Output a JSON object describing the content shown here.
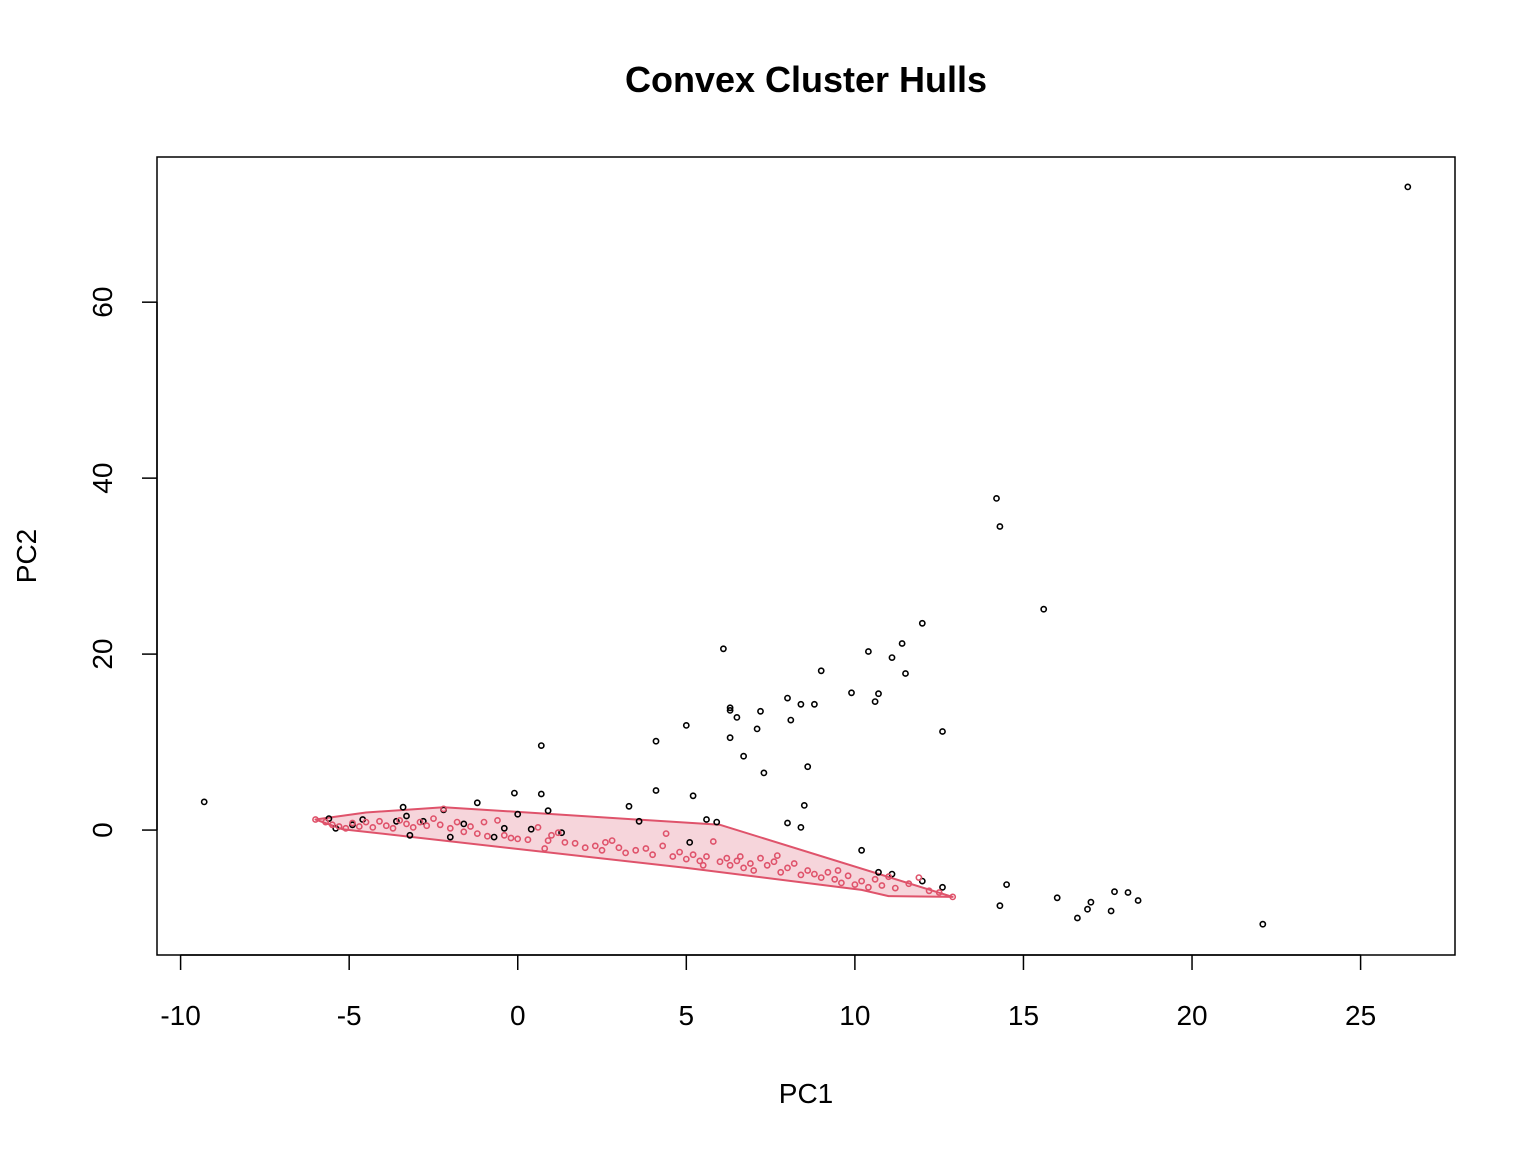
{
  "chart_data": {
    "type": "scatter",
    "title": "Convex Cluster Hulls",
    "xlabel": "PC1",
    "ylabel": "PC2",
    "xlim": [
      -10.7,
      27.8
    ],
    "ylim": [
      -14.2,
      76.5
    ],
    "x_ticks": [
      -10,
      -5,
      0,
      5,
      10,
      15,
      20,
      25
    ],
    "x_tick_labels": [
      "-10",
      "-5",
      "0",
      "5",
      "10",
      "15",
      "20",
      "25"
    ],
    "y_ticks": [
      0,
      20,
      40,
      60
    ],
    "y_tick_labels": [
      "0",
      "20",
      "40",
      "60"
    ],
    "grid": false,
    "legend": "none",
    "colors": {
      "cluster_1": "#000000",
      "cluster_2": "#DF536B",
      "hull_fill": "#F6D5DB",
      "hull_stroke": "#DF536B"
    },
    "series": [
      {
        "color": "#000000",
        "points": [
          [
            -9.3,
            3.2
          ],
          [
            -5.6,
            1.3
          ],
          [
            -5.4,
            0.2
          ],
          [
            -4.9,
            0.6
          ],
          [
            -4.6,
            1.2
          ],
          [
            -3.4,
            2.6
          ],
          [
            -3.3,
            1.6
          ],
          [
            -3.2,
            -0.6
          ],
          [
            -3.6,
            1.0
          ],
          [
            -2.8,
            1.0
          ],
          [
            -2.2,
            2.3
          ],
          [
            -2.0,
            -0.8
          ],
          [
            -1.6,
            0.7
          ],
          [
            -1.2,
            3.1
          ],
          [
            -0.7,
            -0.8
          ],
          [
            -0.4,
            0.2
          ],
          [
            -0.1,
            4.2
          ],
          [
            0.0,
            1.8
          ],
          [
            0.4,
            0.1
          ],
          [
            0.7,
            9.6
          ],
          [
            0.7,
            4.1
          ],
          [
            0.9,
            2.2
          ],
          [
            1.3,
            -0.3
          ],
          [
            3.3,
            2.7
          ],
          [
            3.6,
            1.0
          ],
          [
            4.1,
            10.1
          ],
          [
            4.1,
            4.5
          ],
          [
            5.0,
            11.9
          ],
          [
            5.2,
            3.9
          ],
          [
            5.6,
            1.2
          ],
          [
            5.1,
            -1.4
          ],
          [
            5.9,
            0.9
          ],
          [
            6.1,
            20.6
          ],
          [
            6.3,
            13.9
          ],
          [
            6.3,
            13.6
          ],
          [
            6.5,
            12.8
          ],
          [
            6.3,
            10.5
          ],
          [
            6.7,
            8.4
          ],
          [
            7.2,
            13.5
          ],
          [
            7.1,
            11.5
          ],
          [
            7.3,
            6.5
          ],
          [
            8.0,
            15.0
          ],
          [
            8.1,
            12.5
          ],
          [
            8.4,
            14.3
          ],
          [
            8.8,
            14.3
          ],
          [
            9.0,
            18.1
          ],
          [
            8.6,
            7.2
          ],
          [
            8.5,
            2.8
          ],
          [
            8.0,
            0.8
          ],
          [
            8.4,
            0.3
          ],
          [
            9.9,
            15.6
          ],
          [
            10.4,
            20.3
          ],
          [
            10.6,
            14.6
          ],
          [
            10.7,
            15.5
          ],
          [
            11.1,
            19.6
          ],
          [
            11.4,
            21.2
          ],
          [
            11.5,
            17.8
          ],
          [
            12.0,
            23.5
          ],
          [
            12.6,
            11.2
          ],
          [
            10.2,
            -2.3
          ],
          [
            10.7,
            -4.8
          ],
          [
            11.1,
            -5.0
          ],
          [
            12.0,
            -5.8
          ],
          [
            12.6,
            -6.5
          ],
          [
            14.2,
            37.7
          ],
          [
            14.3,
            34.5
          ],
          [
            15.6,
            25.1
          ],
          [
            14.5,
            -6.2
          ],
          [
            14.3,
            -8.6
          ],
          [
            16.0,
            -7.7
          ],
          [
            16.6,
            -10.0
          ],
          [
            16.9,
            -9.0
          ],
          [
            17.0,
            -8.2
          ],
          [
            17.6,
            -9.2
          ],
          [
            17.7,
            -7.0
          ],
          [
            18.1,
            -7.1
          ],
          [
            18.4,
            -8.0
          ],
          [
            22.1,
            -10.7
          ],
          [
            26.4,
            73.1
          ]
        ]
      },
      {
        "color": "#DF536B",
        "points": [
          [
            -6.0,
            1.2
          ],
          [
            -5.7,
            0.9
          ],
          [
            -5.5,
            0.6
          ],
          [
            -5.3,
            0.4
          ],
          [
            -5.1,
            0.2
          ],
          [
            -4.9,
            0.8
          ],
          [
            -4.7,
            0.4
          ],
          [
            -4.5,
            0.9
          ],
          [
            -4.3,
            0.3
          ],
          [
            -4.1,
            1.0
          ],
          [
            -3.9,
            0.5
          ],
          [
            -3.7,
            0.2
          ],
          [
            -3.5,
            1.1
          ],
          [
            -3.3,
            0.7
          ],
          [
            -3.1,
            0.3
          ],
          [
            -2.9,
            0.9
          ],
          [
            -2.7,
            0.5
          ],
          [
            -2.5,
            1.3
          ],
          [
            -2.3,
            0.6
          ],
          [
            -2.2,
            2.4
          ],
          [
            -2.0,
            0.2
          ],
          [
            -1.8,
            0.9
          ],
          [
            -1.6,
            -0.2
          ],
          [
            -1.4,
            0.4
          ],
          [
            -1.2,
            -0.4
          ],
          [
            -0.9,
            -0.7
          ],
          [
            -0.6,
            1.1
          ],
          [
            -0.4,
            -0.6
          ],
          [
            -0.2,
            -0.9
          ],
          [
            0.0,
            -1.0
          ],
          [
            0.3,
            -1.1
          ],
          [
            0.6,
            0.3
          ],
          [
            0.9,
            -1.2
          ],
          [
            1.2,
            -0.3
          ],
          [
            1.4,
            -1.4
          ],
          [
            1.7,
            -1.5
          ],
          [
            2.0,
            -2.0
          ],
          [
            2.3,
            -1.8
          ],
          [
            2.5,
            -2.3
          ],
          [
            2.8,
            -1.2
          ],
          [
            3.0,
            -2.0
          ],
          [
            3.2,
            -2.6
          ],
          [
            3.5,
            -2.3
          ],
          [
            3.8,
            -2.1
          ],
          [
            4.0,
            -2.8
          ],
          [
            4.3,
            -1.8
          ],
          [
            4.4,
            -0.4
          ],
          [
            4.6,
            -3.0
          ],
          [
            4.8,
            -2.5
          ],
          [
            5.0,
            -3.3
          ],
          [
            5.2,
            -2.8
          ],
          [
            5.4,
            -3.5
          ],
          [
            5.6,
            -3.0
          ],
          [
            5.8,
            -1.3
          ],
          [
            6.0,
            -3.6
          ],
          [
            6.2,
            -3.2
          ],
          [
            6.3,
            -4.0
          ],
          [
            6.5,
            -3.5
          ],
          [
            6.7,
            -4.3
          ],
          [
            6.9,
            -3.8
          ],
          [
            7.0,
            -4.6
          ],
          [
            7.2,
            -3.2
          ],
          [
            7.4,
            -4.0
          ],
          [
            7.6,
            -3.6
          ],
          [
            7.8,
            -4.8
          ],
          [
            8.0,
            -4.3
          ],
          [
            8.2,
            -3.8
          ],
          [
            8.4,
            -5.1
          ],
          [
            8.6,
            -4.6
          ],
          [
            8.8,
            -5.0
          ],
          [
            9.0,
            -5.4
          ],
          [
            9.2,
            -4.8
          ],
          [
            9.4,
            -5.6
          ],
          [
            9.6,
            -6.0
          ],
          [
            9.8,
            -5.2
          ],
          [
            10.0,
            -6.2
          ],
          [
            10.2,
            -5.8
          ],
          [
            10.4,
            -6.5
          ],
          [
            10.6,
            -5.6
          ],
          [
            10.8,
            -6.3
          ],
          [
            11.2,
            -6.6
          ],
          [
            11.6,
            -6.1
          ],
          [
            11.9,
            -5.4
          ],
          [
            12.2,
            -6.9
          ],
          [
            12.5,
            -7.1
          ],
          [
            12.9,
            -7.6
          ],
          [
            11.0,
            -5.3
          ],
          [
            9.5,
            -4.6
          ],
          [
            7.7,
            -2.9
          ],
          [
            6.6,
            -3.0
          ],
          [
            5.5,
            -4.0
          ],
          [
            2.6,
            -1.4
          ],
          [
            1.0,
            -0.6
          ],
          [
            0.8,
            -2.1
          ],
          [
            -1.0,
            0.9
          ]
        ]
      }
    ],
    "hulls": [
      {
        "color": "#DF536B",
        "points": [
          [
            -6.0,
            1.2
          ],
          [
            -4.5,
            2.0
          ],
          [
            -2.2,
            2.6
          ],
          [
            6.0,
            0.6
          ],
          [
            12.9,
            -7.6
          ],
          [
            11.0,
            -7.5
          ],
          [
            10.2,
            -6.8
          ],
          [
            5.0,
            -4.3
          ],
          [
            -5.2,
            0.1
          ]
        ]
      }
    ]
  }
}
